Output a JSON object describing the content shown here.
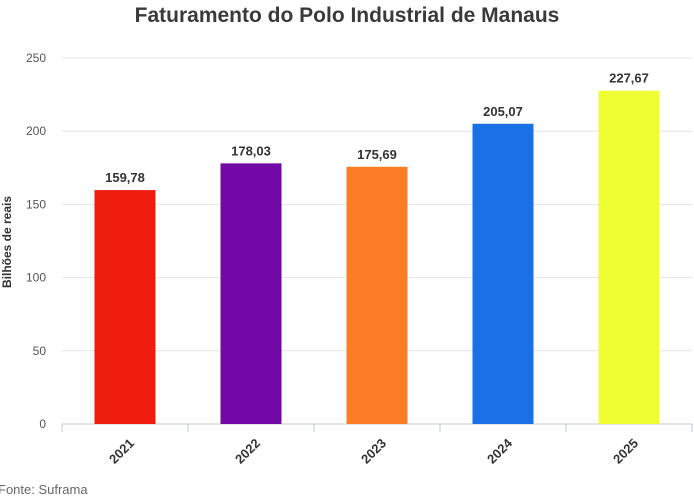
{
  "chart_data": {
    "type": "bar",
    "title": "Faturamento do Polo Industrial de Manaus",
    "xlabel": "",
    "ylabel": "Bilhões de reais",
    "categories": [
      "2021",
      "2022",
      "2023",
      "2024",
      "2025"
    ],
    "values": [
      159.78,
      178.03,
      175.69,
      205.07,
      227.67
    ],
    "data_labels": [
      "159,78",
      "178,03",
      "175,69",
      "205,07",
      "227,67"
    ],
    "colors": [
      "#ee1c0d",
      "#7209a7",
      "#fb7d25",
      "#1971e5",
      "#eefe32"
    ],
    "ylim": [
      0,
      250
    ],
    "yticks": [
      0,
      50,
      100,
      150,
      200,
      250
    ],
    "grid": true,
    "legend": "none"
  },
  "source": "Fonte: Suframa"
}
